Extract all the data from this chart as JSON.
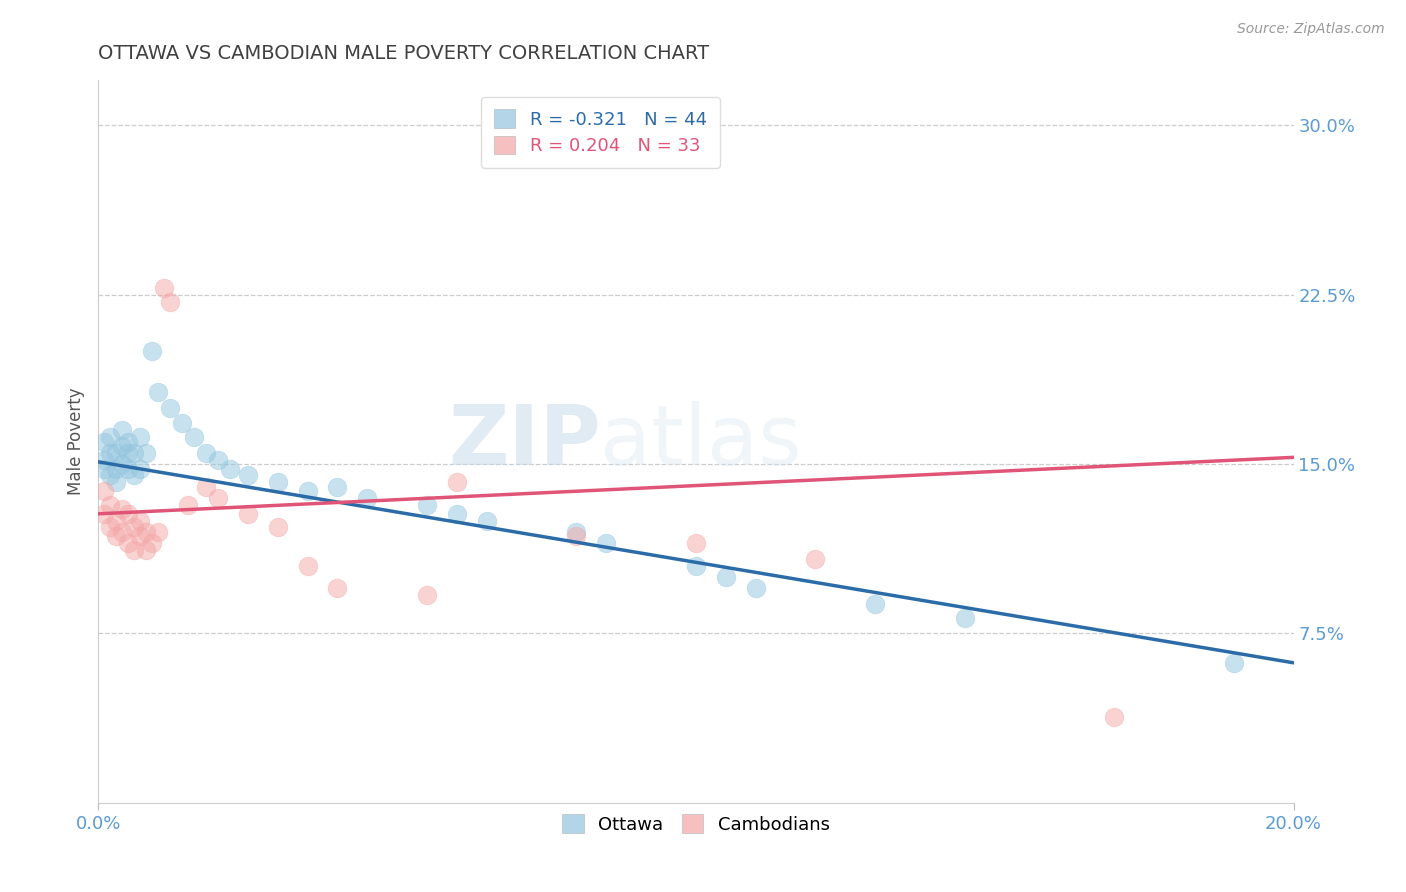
{
  "title": "OTTAWA VS CAMBODIAN MALE POVERTY CORRELATION CHART",
  "source_text": "Source: ZipAtlas.com",
  "ylabel": "Male Poverty",
  "r_ottawa": -0.321,
  "n_ottawa": 44,
  "r_cambodian": 0.204,
  "n_cambodian": 33,
  "xlim": [
    0.0,
    0.2
  ],
  "ylim": [
    0.0,
    0.32
  ],
  "color_ottawa": "#92c5de",
  "color_cambodian": "#f4a6a6",
  "line_color_ottawa": "#2b6ca8",
  "line_color_cambodian": "#e05577",
  "background_color": "#ffffff",
  "watermark_text": "ZIPatlas",
  "ottawa_x": [
    0.001,
    0.001,
    0.001,
    0.002,
    0.002,
    0.002,
    0.003,
    0.003,
    0.003,
    0.004,
    0.004,
    0.004,
    0.005,
    0.005,
    0.005,
    0.006,
    0.006,
    0.007,
    0.007,
    0.008,
    0.009,
    0.01,
    0.012,
    0.014,
    0.016,
    0.018,
    0.02,
    0.022,
    0.025,
    0.03,
    0.035,
    0.04,
    0.045,
    0.055,
    0.06,
    0.065,
    0.08,
    0.085,
    0.1,
    0.105,
    0.11,
    0.13,
    0.145,
    0.19
  ],
  "ottawa_y": [
    0.148,
    0.152,
    0.16,
    0.145,
    0.155,
    0.162,
    0.148,
    0.142,
    0.155,
    0.15,
    0.158,
    0.165,
    0.155,
    0.148,
    0.16,
    0.145,
    0.155,
    0.148,
    0.162,
    0.155,
    0.2,
    0.182,
    0.175,
    0.168,
    0.162,
    0.155,
    0.152,
    0.148,
    0.145,
    0.142,
    0.138,
    0.14,
    0.135,
    0.132,
    0.128,
    0.125,
    0.12,
    0.115,
    0.105,
    0.1,
    0.095,
    0.088,
    0.082,
    0.062
  ],
  "cambodian_x": [
    0.001,
    0.001,
    0.002,
    0.002,
    0.003,
    0.003,
    0.004,
    0.004,
    0.005,
    0.005,
    0.006,
    0.006,
    0.007,
    0.007,
    0.008,
    0.008,
    0.009,
    0.01,
    0.011,
    0.012,
    0.015,
    0.018,
    0.02,
    0.025,
    0.03,
    0.035,
    0.04,
    0.055,
    0.06,
    0.08,
    0.1,
    0.12,
    0.17
  ],
  "cambodian_y": [
    0.138,
    0.128,
    0.132,
    0.122,
    0.125,
    0.118,
    0.13,
    0.12,
    0.128,
    0.115,
    0.122,
    0.112,
    0.125,
    0.118,
    0.12,
    0.112,
    0.115,
    0.12,
    0.228,
    0.222,
    0.132,
    0.14,
    0.135,
    0.128,
    0.122,
    0.105,
    0.095,
    0.092,
    0.142,
    0.118,
    0.115,
    0.108,
    0.038
  ],
  "ott_line_x0": 0.0,
  "ott_line_y0": 0.151,
  "ott_line_x1": 0.2,
  "ott_line_y1": 0.062,
  "cam_line_x0": 0.0,
  "cam_line_y0": 0.128,
  "cam_line_x1": 0.2,
  "cam_line_y1": 0.153
}
